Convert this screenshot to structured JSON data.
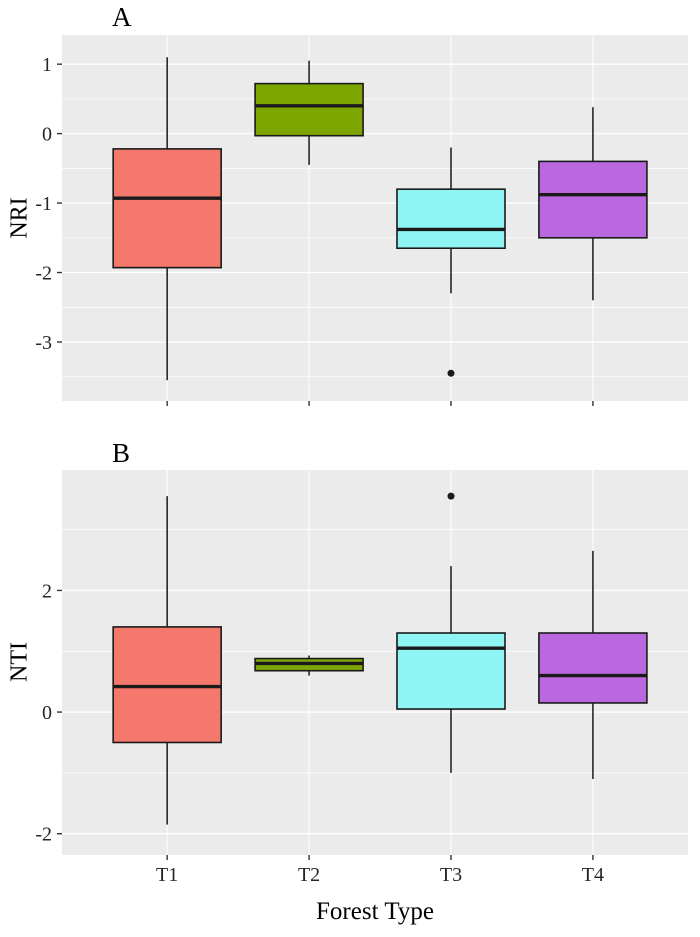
{
  "figure": {
    "xlabel": "Forest Type",
    "panels": [
      {
        "tag": "A",
        "ylabel": "NRI"
      },
      {
        "tag": "B",
        "ylabel": "NTI"
      }
    ]
  },
  "style": {
    "panel_bg": "#EBEBEB",
    "grid_color": "#FFFFFF",
    "box_stroke": "#1A1A1A",
    "tick_color": "#333333",
    "outlier_color": "#1A1A1A"
  },
  "chart_data": [
    {
      "type": "boxplot",
      "panel": "A",
      "title": "",
      "xlabel": "",
      "ylabel": "NRI",
      "grid": true,
      "legend": "none",
      "categories": [
        "T1",
        "T2",
        "T3",
        "T4"
      ],
      "ylim": [
        -3.85,
        1.42
      ],
      "yticks": [
        1,
        0,
        -1,
        -2,
        -3
      ],
      "yticks_minor": [
        0.5,
        -0.5,
        -1.5,
        -2.5,
        -3.5
      ],
      "show_x_tick_labels": false,
      "series": [
        {
          "category": "T1",
          "color": "#F4786B",
          "whisker_low": -3.55,
          "q1": -1.93,
          "median": -0.93,
          "q3": -0.22,
          "whisker_high": 1.1,
          "outliers": []
        },
        {
          "category": "T2",
          "color": "#7EA601",
          "whisker_low": -0.45,
          "q1": -0.03,
          "median": 0.4,
          "q3": 0.72,
          "whisker_high": 1.05,
          "outliers": []
        },
        {
          "category": "T3",
          "color": "#8FF4F4",
          "whisker_low": -2.3,
          "q1": -1.65,
          "median": -1.38,
          "q3": -0.8,
          "whisker_high": -0.2,
          "outliers": [
            -3.45
          ]
        },
        {
          "category": "T4",
          "color": "#BA68E0",
          "whisker_low": -2.4,
          "q1": -1.5,
          "median": -0.88,
          "q3": -0.4,
          "whisker_high": 0.38,
          "outliers": []
        }
      ]
    },
    {
      "type": "boxplot",
      "panel": "B",
      "title": "",
      "xlabel": "Forest Type",
      "ylabel": "NTI",
      "grid": true,
      "legend": "none",
      "categories": [
        "T1",
        "T2",
        "T3",
        "T4"
      ],
      "ylim": [
        -2.35,
        3.98
      ],
      "yticks": [
        2,
        0,
        -2
      ],
      "yticks_minor": [
        3,
        1,
        -1
      ],
      "show_x_tick_labels": true,
      "series": [
        {
          "category": "T1",
          "color": "#F4786B",
          "whisker_low": -1.85,
          "q1": -0.5,
          "median": 0.42,
          "q3": 1.4,
          "whisker_high": 3.55,
          "outliers": []
        },
        {
          "category": "T2",
          "color": "#7EA601",
          "whisker_low": 0.6,
          "q1": 0.68,
          "median": 0.8,
          "q3": 0.88,
          "whisker_high": 0.93,
          "outliers": []
        },
        {
          "category": "T3",
          "color": "#8FF4F4",
          "whisker_low": -1.0,
          "q1": 0.05,
          "median": 1.05,
          "q3": 1.3,
          "whisker_high": 2.4,
          "outliers": [
            3.55
          ]
        },
        {
          "category": "T4",
          "color": "#BA68E0",
          "whisker_low": -1.1,
          "q1": 0.15,
          "median": 0.6,
          "q3": 1.3,
          "whisker_high": 2.65,
          "outliers": []
        }
      ]
    }
  ]
}
